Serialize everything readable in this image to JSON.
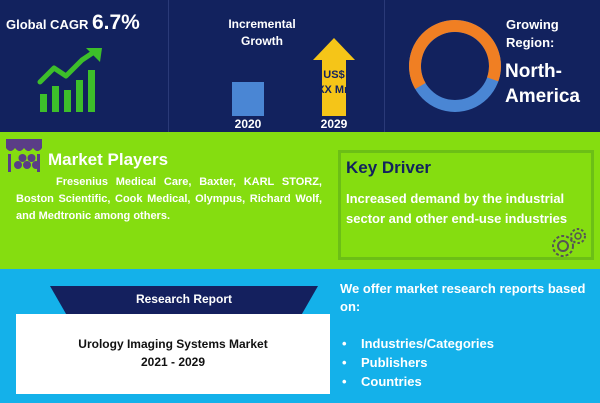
{
  "header": {
    "cagr_label": "Global CAGR",
    "cagr_value": "6.7%",
    "growth_title_line1": "Incremental",
    "growth_title_line2": "Growth",
    "year_start": "2020",
    "year_end": "2029",
    "value_line1": "US$",
    "value_line2": "XX Mn",
    "region_title_line1": "Growing",
    "region_title_line2": "Region:",
    "region_name_line1": "North-",
    "region_name_line2": "America"
  },
  "market_players": {
    "title": "Market Players",
    "text": "Fresenius Medical Care, Baxter, KARL STORZ, Boston Scientific, Cook Medical, Olympus, Richard Wolf, and Medtronic among others."
  },
  "key_driver": {
    "title": "Key Driver",
    "text": "Increased demand by the industrial sector and other end-use industries"
  },
  "research_report": {
    "label": "Research Report",
    "name_line1": "Urology Imaging Systems Market",
    "name_line2": "2021 - 2029"
  },
  "offer": {
    "title": "We offer market research reports based on:",
    "items": [
      "Industries/Categories",
      "Publishers",
      "Countries"
    ]
  },
  "colors": {
    "navy": "#12225e",
    "green": "#85dd10",
    "blue": "#14b1ea",
    "orange": "#f07f23",
    "donut_blue": "#4a86d4",
    "arrow_yellow": "#f5c518"
  },
  "icons": [
    "growth-chart-icon",
    "growth-arrow-icon",
    "donut-ring-icon",
    "store-icon",
    "gear-icon"
  ]
}
